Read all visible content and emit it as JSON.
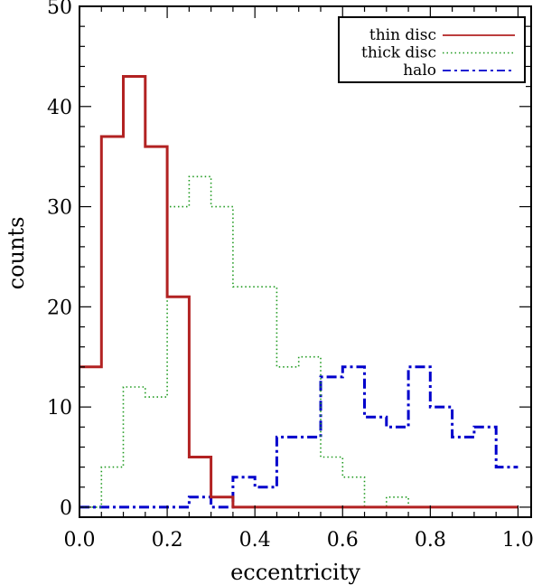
{
  "chart_data": {
    "type": "histogram",
    "xlabel": "eccentricity",
    "ylabel": "counts",
    "xlim": [
      0.0,
      1.03
    ],
    "ylim": [
      -1,
      50
    ],
    "xticks": [
      "0.0",
      "0.2",
      "0.4",
      "0.6",
      "0.8",
      "1.0"
    ],
    "yticks": [
      "0",
      "10",
      "20",
      "30",
      "40",
      "50"
    ],
    "bin_edges": [
      0.0,
      0.05,
      0.1,
      0.15,
      0.2,
      0.25,
      0.3,
      0.35,
      0.4,
      0.45,
      0.5,
      0.55,
      0.6,
      0.65,
      0.7,
      0.75,
      0.8,
      0.85,
      0.9,
      0.95,
      1.0
    ],
    "legend_position": "top-right",
    "series": [
      {
        "name": "thin disc",
        "color": "#b22222",
        "style": "solid",
        "values": [
          14,
          37,
          43,
          36,
          21,
          5,
          1,
          0,
          0,
          0,
          0,
          0,
          0,
          0,
          0,
          0,
          0,
          0,
          0,
          0
        ]
      },
      {
        "name": "thick disc",
        "color": "#1f9a1f",
        "style": "dotted",
        "values": [
          0,
          4,
          12,
          11,
          30,
          33,
          30,
          22,
          22,
          14,
          15,
          5,
          3,
          0,
          1,
          0,
          0,
          0,
          0,
          0
        ]
      },
      {
        "name": "halo",
        "color": "#0000cc",
        "style": "dashdot",
        "values": [
          0,
          0,
          0,
          0,
          0,
          1,
          0,
          3,
          2,
          7,
          7,
          13,
          14,
          9,
          8,
          14,
          10,
          7,
          8,
          4
        ]
      }
    ]
  }
}
